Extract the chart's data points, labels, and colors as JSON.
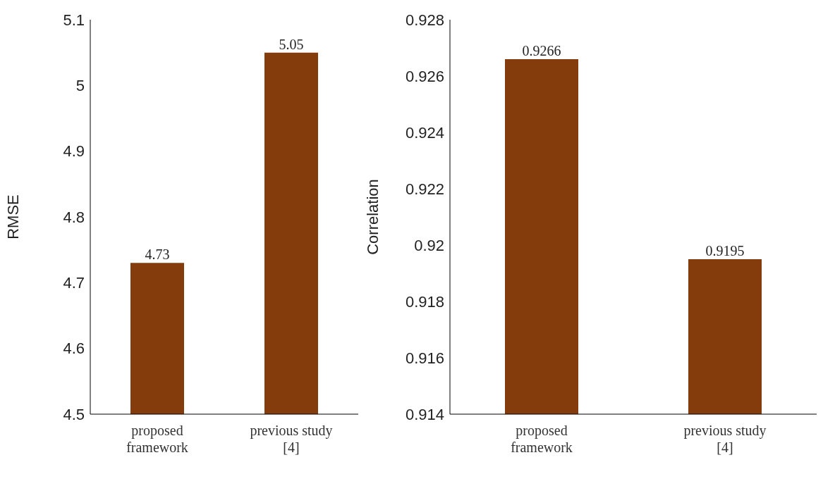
{
  "chart_data": [
    {
      "type": "bar",
      "ylabel": "RMSE",
      "categories": [
        "proposed framework",
        "previous study [4]"
      ],
      "values": [
        4.73,
        5.05
      ],
      "color": "#843c0c",
      "ylim": [
        4.5,
        5.1
      ],
      "yticks": [
        4.5,
        4.6,
        4.7,
        4.8,
        4.9,
        5,
        5.1
      ],
      "data_labels": true
    },
    {
      "type": "bar",
      "ylabel": "Correlation",
      "categories": [
        "proposed framework",
        "previous study [4]"
      ],
      "values": [
        0.9266,
        0.9195
      ],
      "color": "#843c0c",
      "ylim": [
        0.914,
        0.928
      ],
      "yticks": [
        0.914,
        0.916,
        0.918,
        0.92,
        0.922,
        0.924,
        0.926,
        0.928
      ],
      "data_labels": true
    }
  ]
}
